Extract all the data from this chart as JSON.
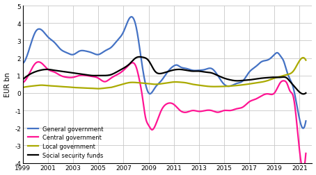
{
  "title": "",
  "ylabel": "EUR bn",
  "xlim": [
    1999,
    2022
  ],
  "ylim": [
    -4,
    5
  ],
  "yticks": [
    -4,
    -3,
    -2,
    -1,
    0,
    1,
    2,
    3,
    4,
    5
  ],
  "xticks": [
    1999,
    2001,
    2003,
    2005,
    2007,
    2009,
    2011,
    2013,
    2015,
    2017,
    2019,
    2021
  ],
  "series": {
    "General government": {
      "color": "#4472C4",
      "x": [
        1999.0,
        1999.5,
        2000.0,
        2000.5,
        2001.0,
        2001.5,
        2002.0,
        2002.5,
        2003.0,
        2003.5,
        2004.0,
        2004.5,
        2005.0,
        2005.5,
        2006.0,
        2006.5,
        2007.0,
        2007.5,
        2008.0,
        2008.5,
        2009.0,
        2009.5,
        2010.0,
        2010.5,
        2011.0,
        2011.25,
        2011.5,
        2012.0,
        2012.5,
        2013.0,
        2013.5,
        2014.0,
        2014.5,
        2015.0,
        2015.5,
        2016.0,
        2016.5,
        2017.0,
        2017.5,
        2018.0,
        2018.5,
        2019.0,
        2019.25,
        2019.5,
        2019.75,
        2020.0,
        2020.5,
        2021.0,
        2021.5
      ],
      "y": [
        1.7,
        2.5,
        3.5,
        3.6,
        3.2,
        2.9,
        2.5,
        2.3,
        2.2,
        2.4,
        2.4,
        2.3,
        2.2,
        2.4,
        2.6,
        3.0,
        3.5,
        4.3,
        3.8,
        1.5,
        0.0,
        0.3,
        0.7,
        1.2,
        1.55,
        1.6,
        1.5,
        1.4,
        1.3,
        1.3,
        1.35,
        1.4,
        1.0,
        0.5,
        0.4,
        0.55,
        0.7,
        1.2,
        1.5,
        1.8,
        1.9,
        2.2,
        2.3,
        2.1,
        1.8,
        1.2,
        0.3,
        -1.5,
        -1.6
      ]
    },
    "Central government": {
      "color": "#FF1493",
      "x": [
        1999.0,
        1999.5,
        2000.0,
        2000.5,
        2001.0,
        2001.5,
        2002.0,
        2002.5,
        2003.0,
        2003.5,
        2004.0,
        2004.5,
        2005.0,
        2005.5,
        2006.0,
        2006.5,
        2007.0,
        2007.5,
        2008.0,
        2008.25,
        2008.5,
        2008.75,
        2009.0,
        2009.25,
        2009.5,
        2010.0,
        2010.5,
        2011.0,
        2011.5,
        2012.0,
        2012.5,
        2013.0,
        2013.5,
        2014.0,
        2014.5,
        2015.0,
        2015.5,
        2016.0,
        2016.5,
        2017.0,
        2017.5,
        2018.0,
        2018.5,
        2019.0,
        2019.5,
        2019.75,
        2020.0,
        2020.25,
        2020.5,
        2021.0,
        2021.5
      ],
      "y": [
        0.6,
        1.1,
        1.7,
        1.7,
        1.35,
        1.2,
        1.0,
        0.9,
        0.9,
        1.0,
        1.0,
        0.95,
        0.85,
        0.65,
        0.85,
        1.05,
        1.3,
        1.65,
        1.5,
        0.8,
        -0.2,
        -1.4,
        -1.85,
        -2.1,
        -1.9,
        -1.0,
        -0.6,
        -0.65,
        -1.0,
        -1.1,
        -1.0,
        -1.05,
        -1.0,
        -1.0,
        -1.1,
        -1.0,
        -1.0,
        -0.9,
        -0.8,
        -0.5,
        -0.35,
        -0.15,
        -0.05,
        0.0,
        0.62,
        0.7,
        0.55,
        0.1,
        -0.2,
        -3.3,
        -3.45
      ]
    },
    "Local government": {
      "color": "#AAAA00",
      "x": [
        1999.0,
        1999.5,
        2000.0,
        2000.5,
        2001.0,
        2001.5,
        2002.0,
        2002.5,
        2003.0,
        2003.5,
        2004.0,
        2004.5,
        2005.0,
        2005.5,
        2006.0,
        2006.5,
        2007.0,
        2007.5,
        2008.0,
        2008.5,
        2009.0,
        2009.5,
        2010.0,
        2010.5,
        2011.0,
        2011.5,
        2012.0,
        2012.5,
        2013.0,
        2013.5,
        2014.0,
        2014.5,
        2015.0,
        2015.5,
        2016.0,
        2016.5,
        2017.0,
        2017.5,
        2018.0,
        2018.5,
        2019.0,
        2019.5,
        2020.0,
        2020.5,
        2021.0,
        2021.5
      ],
      "y": [
        0.32,
        0.38,
        0.42,
        0.45,
        0.42,
        0.4,
        0.37,
        0.35,
        0.32,
        0.3,
        0.28,
        0.27,
        0.25,
        0.28,
        0.32,
        0.42,
        0.52,
        0.6,
        0.6,
        0.57,
        0.54,
        0.5,
        0.53,
        0.58,
        0.63,
        0.62,
        0.58,
        0.5,
        0.45,
        0.4,
        0.37,
        0.37,
        0.38,
        0.4,
        0.43,
        0.47,
        0.52,
        0.58,
        0.63,
        0.72,
        0.85,
        0.95,
        1.05,
        1.25,
        1.85,
        1.88
      ]
    },
    "Social security funds": {
      "color": "#000000",
      "x": [
        1999.0,
        1999.5,
        2000.0,
        2000.5,
        2001.0,
        2001.5,
        2002.0,
        2002.5,
        2003.0,
        2003.5,
        2004.0,
        2004.5,
        2005.0,
        2005.5,
        2006.0,
        2006.5,
        2007.0,
        2007.5,
        2008.0,
        2008.5,
        2009.0,
        2009.5,
        2010.0,
        2010.5,
        2011.0,
        2011.5,
        2012.0,
        2012.5,
        2013.0,
        2013.5,
        2014.0,
        2014.5,
        2015.0,
        2015.5,
        2016.0,
        2016.5,
        2017.0,
        2017.5,
        2018.0,
        2018.5,
        2019.0,
        2019.5,
        2020.0,
        2020.25,
        2020.5,
        2021.0,
        2021.5
      ],
      "y": [
        0.78,
        1.05,
        1.22,
        1.32,
        1.35,
        1.3,
        1.25,
        1.2,
        1.15,
        1.1,
        1.05,
        1.0,
        1.0,
        1.0,
        1.05,
        1.22,
        1.42,
        1.68,
        2.02,
        2.05,
        1.85,
        1.25,
        1.12,
        1.22,
        1.32,
        1.35,
        1.3,
        1.25,
        1.25,
        1.2,
        1.15,
        1.0,
        0.85,
        0.75,
        0.7,
        0.72,
        0.75,
        0.8,
        0.85,
        0.88,
        0.9,
        0.9,
        0.85,
        0.65,
        0.45,
        0.05,
        0.0
      ]
    }
  },
  "legend_order": [
    "General government",
    "Central government",
    "Local government",
    "Social security funds"
  ],
  "background_color": "#ffffff",
  "grid_color": "#c8c8c8"
}
